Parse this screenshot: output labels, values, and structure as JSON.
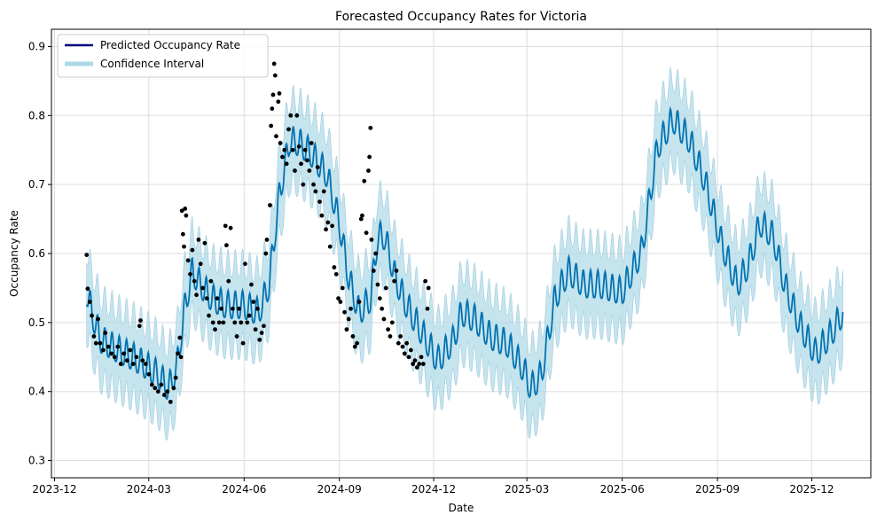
{
  "chart_data": {
    "type": "line",
    "title": "Forecasted Occupancy Rates for Victoria",
    "xlabel": "Date",
    "ylabel": "Occupancy Rate",
    "x_range": [
      "2023-11-28",
      "2026-01-27"
    ],
    "ylim": [
      0.275,
      0.925
    ],
    "grid": true,
    "legend_placement": "top-left",
    "x_ticks": [
      "2023-12",
      "2024-03",
      "2024-06",
      "2024-09",
      "2024-12",
      "2025-03",
      "2025-06",
      "2025-09",
      "2025-12"
    ],
    "x_tick_dates": [
      "2023-12-01",
      "2024-03-01",
      "2024-06-01",
      "2024-09-01",
      "2024-12-01",
      "2025-03-01",
      "2025-06-01",
      "2025-09-01",
      "2025-12-01"
    ],
    "y_ticks": [
      0.3,
      0.4,
      0.5,
      0.6,
      0.7,
      0.8,
      0.9
    ],
    "y_tick_labels": [
      "0.3",
      "0.4",
      "0.5",
      "0.6",
      "0.7",
      "0.8",
      "0.9"
    ],
    "colors": {
      "prediction": "#0072b2",
      "interval_fill": "#add8e6",
      "observed": "#000000",
      "legend_line": "#000080",
      "grid": "#dddddd"
    },
    "legend": [
      {
        "label": "Predicted Occupancy Rate",
        "color": "#000080"
      },
      {
        "label": "Confidence Interval",
        "color": "#add8e6"
      }
    ],
    "weekly_amplitude": 0.04,
    "interval_halfwidth": 0.06,
    "series": [
      {
        "name": "Predicted Occupancy Rate",
        "style": "line",
        "trend": [
          [
            "2024-01-01",
            0.54
          ],
          [
            "2024-01-08",
            0.5
          ],
          [
            "2024-01-15",
            0.47
          ],
          [
            "2024-02-01",
            0.455
          ],
          [
            "2024-02-15",
            0.445
          ],
          [
            "2024-03-01",
            0.43
          ],
          [
            "2024-03-10",
            0.42
          ],
          [
            "2024-03-20",
            0.4
          ],
          [
            "2024-03-28",
            0.43
          ],
          [
            "2024-04-05",
            0.52
          ],
          [
            "2024-04-12",
            0.57
          ],
          [
            "2024-04-20",
            0.55
          ],
          [
            "2024-05-01",
            0.53
          ],
          [
            "2024-05-15",
            0.52
          ],
          [
            "2024-06-01",
            0.52
          ],
          [
            "2024-06-15",
            0.51
          ],
          [
            "2024-06-25",
            0.55
          ],
          [
            "2024-07-05",
            0.68
          ],
          [
            "2024-07-15",
            0.76
          ],
          [
            "2024-07-25",
            0.755
          ],
          [
            "2024-08-05",
            0.74
          ],
          [
            "2024-08-20",
            0.71
          ],
          [
            "2024-09-01",
            0.64
          ],
          [
            "2024-09-10",
            0.56
          ],
          [
            "2024-09-20",
            0.51
          ],
          [
            "2024-10-01",
            0.53
          ],
          [
            "2024-10-08",
            0.62
          ],
          [
            "2024-10-15",
            0.62
          ],
          [
            "2024-10-25",
            0.56
          ],
          [
            "2024-11-05",
            0.52
          ],
          [
            "2024-11-20",
            0.48
          ],
          [
            "2024-12-05",
            0.44
          ],
          [
            "2024-12-20",
            0.47
          ],
          [
            "2024-12-28",
            0.51
          ],
          [
            "2025-01-10",
            0.5
          ],
          [
            "2025-01-25",
            0.475
          ],
          [
            "2025-02-10",
            0.465
          ],
          [
            "2025-02-25",
            0.43
          ],
          [
            "2025-03-05",
            0.4
          ],
          [
            "2025-03-15",
            0.42
          ],
          [
            "2025-03-28",
            0.53
          ],
          [
            "2025-04-10",
            0.57
          ],
          [
            "2025-04-25",
            0.55
          ],
          [
            "2025-05-10",
            0.55
          ],
          [
            "2025-06-01",
            0.54
          ],
          [
            "2025-06-20",
            0.6
          ],
          [
            "2025-07-05",
            0.75
          ],
          [
            "2025-07-20",
            0.79
          ],
          [
            "2025-08-05",
            0.76
          ],
          [
            "2025-08-20",
            0.7
          ],
          [
            "2025-09-05",
            0.61
          ],
          [
            "2025-09-20",
            0.55
          ],
          [
            "2025-10-01",
            0.58
          ],
          [
            "2025-10-12",
            0.64
          ],
          [
            "2025-10-25",
            0.62
          ],
          [
            "2025-11-05",
            0.55
          ],
          [
            "2025-11-20",
            0.49
          ],
          [
            "2025-12-05",
            0.45
          ],
          [
            "2025-12-20",
            0.48
          ],
          [
            "2025-12-31",
            0.51
          ]
        ]
      },
      {
        "name": "Confidence Interval",
        "style": "band",
        "halfwidth": 0.06
      },
      {
        "name": "Observed",
        "style": "scatter",
        "points": [
          [
            "2024-01-01",
            0.598
          ],
          [
            "2024-01-02",
            0.549
          ],
          [
            "2024-01-04",
            0.53
          ],
          [
            "2024-01-06",
            0.51
          ],
          [
            "2024-01-08",
            0.48
          ],
          [
            "2024-01-10",
            0.47
          ],
          [
            "2024-01-12",
            0.505
          ],
          [
            "2024-01-14",
            0.47
          ],
          [
            "2024-01-17",
            0.46
          ],
          [
            "2024-01-19",
            0.485
          ],
          [
            "2024-01-22",
            0.465
          ],
          [
            "2024-01-25",
            0.455
          ],
          [
            "2024-01-28",
            0.45
          ],
          [
            "2024-01-31",
            0.465
          ],
          [
            "2024-02-03",
            0.44
          ],
          [
            "2024-02-06",
            0.455
          ],
          [
            "2024-02-09",
            0.445
          ],
          [
            "2024-02-12",
            0.46
          ],
          [
            "2024-02-15",
            0.44
          ],
          [
            "2024-02-18",
            0.45
          ],
          [
            "2024-02-21",
            0.495
          ],
          [
            "2024-02-22",
            0.503
          ],
          [
            "2024-02-24",
            0.445
          ],
          [
            "2024-02-27",
            0.44
          ],
          [
            "2024-03-01",
            0.425
          ],
          [
            "2024-03-04",
            0.41
          ],
          [
            "2024-03-07",
            0.405
          ],
          [
            "2024-03-10",
            0.4
          ],
          [
            "2024-03-13",
            0.41
          ],
          [
            "2024-03-16",
            0.395
          ],
          [
            "2024-03-19",
            0.4
          ],
          [
            "2024-03-22",
            0.385
          ],
          [
            "2024-03-25",
            0.405
          ],
          [
            "2024-03-27",
            0.42
          ],
          [
            "2024-03-29",
            0.455
          ],
          [
            "2024-03-31",
            0.478
          ],
          [
            "2024-04-01",
            0.45
          ],
          [
            "2024-04-02",
            0.662
          ],
          [
            "2024-04-03",
            0.628
          ],
          [
            "2024-04-04",
            0.61
          ],
          [
            "2024-04-05",
            0.665
          ],
          [
            "2024-04-06",
            0.655
          ],
          [
            "2024-04-08",
            0.59
          ],
          [
            "2024-04-10",
            0.57
          ],
          [
            "2024-04-12",
            0.605
          ],
          [
            "2024-04-14",
            0.56
          ],
          [
            "2024-04-16",
            0.54
          ],
          [
            "2024-04-18",
            0.62
          ],
          [
            "2024-04-20",
            0.585
          ],
          [
            "2024-04-22",
            0.55
          ],
          [
            "2024-04-24",
            0.615
          ],
          [
            "2024-04-26",
            0.535
          ],
          [
            "2024-04-28",
            0.51
          ],
          [
            "2024-04-30",
            0.56
          ],
          [
            "2024-05-02",
            0.5
          ],
          [
            "2024-05-04",
            0.49
          ],
          [
            "2024-05-06",
            0.535
          ],
          [
            "2024-05-08",
            0.5
          ],
          [
            "2024-05-10",
            0.52
          ],
          [
            "2024-05-12",
            0.5
          ],
          [
            "2024-05-14",
            0.64
          ],
          [
            "2024-05-15",
            0.612
          ],
          [
            "2024-05-17",
            0.56
          ],
          [
            "2024-05-19",
            0.637
          ],
          [
            "2024-05-21",
            0.52
          ],
          [
            "2024-05-23",
            0.5
          ],
          [
            "2024-05-25",
            0.48
          ],
          [
            "2024-05-27",
            0.52
          ],
          [
            "2024-05-29",
            0.5
          ],
          [
            "2024-05-31",
            0.47
          ],
          [
            "2024-06-02",
            0.585
          ],
          [
            "2024-06-04",
            0.5
          ],
          [
            "2024-06-06",
            0.51
          ],
          [
            "2024-06-08",
            0.555
          ],
          [
            "2024-06-10",
            0.53
          ],
          [
            "2024-06-12",
            0.49
          ],
          [
            "2024-06-14",
            0.52
          ],
          [
            "2024-06-16",
            0.475
          ],
          [
            "2024-06-18",
            0.485
          ],
          [
            "2024-06-20",
            0.495
          ],
          [
            "2024-06-22",
            0.6
          ],
          [
            "2024-06-23",
            0.62
          ],
          [
            "2024-06-26",
            0.67
          ],
          [
            "2024-06-27",
            0.785
          ],
          [
            "2024-06-28",
            0.81
          ],
          [
            "2024-06-29",
            0.83
          ],
          [
            "2024-06-30",
            0.875
          ],
          [
            "2024-07-01",
            0.858
          ],
          [
            "2024-07-02",
            0.77
          ],
          [
            "2024-07-04",
            0.82
          ],
          [
            "2024-07-05",
            0.832
          ],
          [
            "2024-07-06",
            0.76
          ],
          [
            "2024-07-08",
            0.74
          ],
          [
            "2024-07-10",
            0.75
          ],
          [
            "2024-07-12",
            0.73
          ],
          [
            "2024-07-14",
            0.78
          ],
          [
            "2024-07-16",
            0.8
          ],
          [
            "2024-07-18",
            0.75
          ],
          [
            "2024-07-20",
            0.72
          ],
          [
            "2024-07-22",
            0.8
          ],
          [
            "2024-07-24",
            0.755
          ],
          [
            "2024-07-26",
            0.73
          ],
          [
            "2024-07-28",
            0.7
          ],
          [
            "2024-07-30",
            0.75
          ],
          [
            "2024-08-01",
            0.735
          ],
          [
            "2024-08-03",
            0.72
          ],
          [
            "2024-08-05",
            0.76
          ],
          [
            "2024-08-07",
            0.7
          ],
          [
            "2024-08-09",
            0.69
          ],
          [
            "2024-08-11",
            0.725
          ],
          [
            "2024-08-13",
            0.675
          ],
          [
            "2024-08-15",
            0.655
          ],
          [
            "2024-08-17",
            0.69
          ],
          [
            "2024-08-19",
            0.635
          ],
          [
            "2024-08-21",
            0.645
          ],
          [
            "2024-08-23",
            0.61
          ],
          [
            "2024-08-25",
            0.64
          ],
          [
            "2024-08-27",
            0.58
          ],
          [
            "2024-08-29",
            0.57
          ],
          [
            "2024-08-31",
            0.535
          ],
          [
            "2024-09-02",
            0.53
          ],
          [
            "2024-09-04",
            0.55
          ],
          [
            "2024-09-06",
            0.515
          ],
          [
            "2024-09-08",
            0.49
          ],
          [
            "2024-09-10",
            0.505
          ],
          [
            "2024-09-12",
            0.52
          ],
          [
            "2024-09-14",
            0.48
          ],
          [
            "2024-09-16",
            0.465
          ],
          [
            "2024-09-18",
            0.47
          ],
          [
            "2024-09-20",
            0.53
          ],
          [
            "2024-09-22",
            0.65
          ],
          [
            "2024-09-23",
            0.655
          ],
          [
            "2024-09-25",
            0.705
          ],
          [
            "2024-09-27",
            0.63
          ],
          [
            "2024-09-29",
            0.72
          ],
          [
            "2024-09-30",
            0.74
          ],
          [
            "2024-10-01",
            0.782
          ],
          [
            "2024-10-02",
            0.62
          ],
          [
            "2024-10-04",
            0.575
          ],
          [
            "2024-10-06",
            0.6
          ],
          [
            "2024-10-08",
            0.555
          ],
          [
            "2024-10-10",
            0.535
          ],
          [
            "2024-10-12",
            0.52
          ],
          [
            "2024-10-14",
            0.505
          ],
          [
            "2024-10-16",
            0.55
          ],
          [
            "2024-10-18",
            0.49
          ],
          [
            "2024-10-20",
            0.48
          ],
          [
            "2024-10-22",
            0.5
          ],
          [
            "2024-10-24",
            0.56
          ],
          [
            "2024-10-26",
            0.575
          ],
          [
            "2024-10-28",
            0.47
          ],
          [
            "2024-10-30",
            0.48
          ],
          [
            "2024-11-01",
            0.465
          ],
          [
            "2024-11-03",
            0.455
          ],
          [
            "2024-11-05",
            0.47
          ],
          [
            "2024-11-07",
            0.45
          ],
          [
            "2024-11-09",
            0.46
          ],
          [
            "2024-11-11",
            0.44
          ],
          [
            "2024-11-13",
            0.445
          ],
          [
            "2024-11-15",
            0.435
          ],
          [
            "2024-11-17",
            0.44
          ],
          [
            "2024-11-19",
            0.45
          ],
          [
            "2024-11-21",
            0.44
          ],
          [
            "2024-11-23",
            0.56
          ],
          [
            "2024-11-25",
            0.52
          ],
          [
            "2024-11-26",
            0.55
          ]
        ]
      }
    ]
  }
}
